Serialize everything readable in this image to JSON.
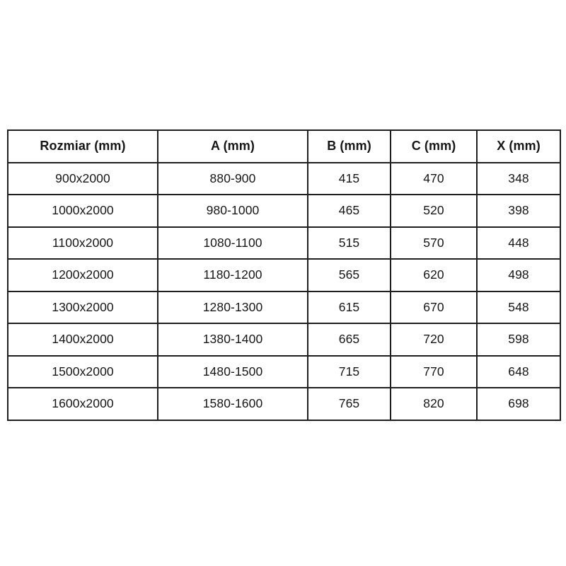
{
  "colors": {
    "border": "#1f1f1f",
    "text": "#161616",
    "background": "#ffffff"
  },
  "table": {
    "columns": [
      "Rozmiar (mm)",
      "A (mm)",
      "B (mm)",
      "C (mm)",
      "X (mm)"
    ],
    "rows": [
      [
        "900x2000",
        "880-900",
        "415",
        "470",
        "348"
      ],
      [
        "1000x2000",
        "980-1000",
        "465",
        "520",
        "398"
      ],
      [
        "1100x2000",
        "1080-1100",
        "515",
        "570",
        "448"
      ],
      [
        "1200x2000",
        "1180-1200",
        "565",
        "620",
        "498"
      ],
      [
        "1300x2000",
        "1280-1300",
        "615",
        "670",
        "548"
      ],
      [
        "1400x2000",
        "1380-1400",
        "665",
        "720",
        "598"
      ],
      [
        "1500x2000",
        "1480-1500",
        "715",
        "770",
        "648"
      ],
      [
        "1600x2000",
        "1580-1600",
        "765",
        "820",
        "698"
      ]
    ]
  }
}
